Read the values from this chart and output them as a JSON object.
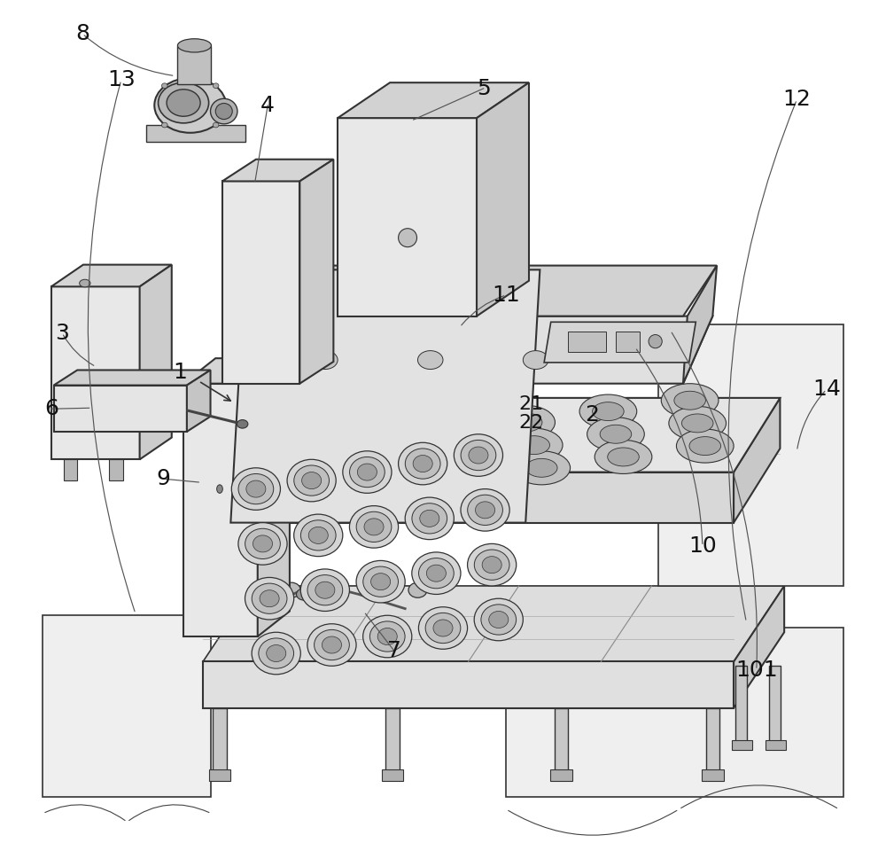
{
  "background_color": "#ffffff",
  "figsize": [
    10.0,
    9.51
  ],
  "dpi": 100,
  "label_fontsize": 18,
  "line_color": "#333333",
  "line_width": 1.2
}
